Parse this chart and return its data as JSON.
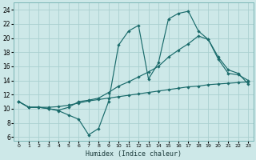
{
  "xlabel": "Humidex (Indice chaleur)",
  "bg_color": "#cde8e8",
  "grid_color": "#aacfcf",
  "line_color": "#1a6b6b",
  "xlim": [
    -0.5,
    23.5
  ],
  "ylim": [
    5.5,
    25.0
  ],
  "xticks": [
    0,
    1,
    2,
    3,
    4,
    5,
    6,
    7,
    8,
    9,
    10,
    11,
    12,
    13,
    14,
    15,
    16,
    17,
    18,
    19,
    20,
    21,
    22,
    23
  ],
  "yticks": [
    6,
    8,
    10,
    12,
    14,
    16,
    18,
    20,
    22,
    24
  ],
  "line1_x": [
    0,
    1,
    2,
    3,
    4,
    5,
    6,
    7,
    8,
    9,
    10,
    11,
    12,
    13,
    14,
    15,
    16,
    17,
    18,
    19,
    20,
    21,
    22,
    23
  ],
  "line1_y": [
    11,
    10.2,
    10.2,
    10.0,
    9.7,
    9.1,
    8.5,
    6.3,
    7.2,
    11.0,
    19.0,
    21.0,
    21.8,
    14.2,
    16.5,
    22.7,
    23.5,
    23.8,
    21.0,
    19.8,
    17.0,
    15.0,
    14.8,
    14.0
  ],
  "line2_x": [
    0,
    1,
    2,
    3,
    4,
    5,
    6,
    7,
    8,
    9,
    10,
    11,
    12,
    13,
    14,
    15,
    16,
    17,
    18,
    19,
    20,
    21,
    22,
    23
  ],
  "line2_y": [
    11.0,
    10.2,
    10.2,
    10.2,
    10.3,
    10.5,
    10.8,
    11.1,
    11.3,
    11.5,
    11.7,
    11.9,
    12.1,
    12.3,
    12.5,
    12.7,
    12.9,
    13.1,
    13.2,
    13.4,
    13.5,
    13.6,
    13.7,
    13.8
  ],
  "line3_x": [
    0,
    1,
    2,
    3,
    4,
    5,
    6,
    7,
    8,
    9,
    10,
    11,
    12,
    13,
    14,
    15,
    16,
    17,
    18,
    19,
    20,
    21,
    22,
    23
  ],
  "line3_y": [
    11,
    10.2,
    10.2,
    10.0,
    9.8,
    10.2,
    11.0,
    11.2,
    11.5,
    12.3,
    13.2,
    13.8,
    14.5,
    15.2,
    16.0,
    17.3,
    18.3,
    19.2,
    20.3,
    19.8,
    17.3,
    15.5,
    15.0,
    13.5
  ]
}
